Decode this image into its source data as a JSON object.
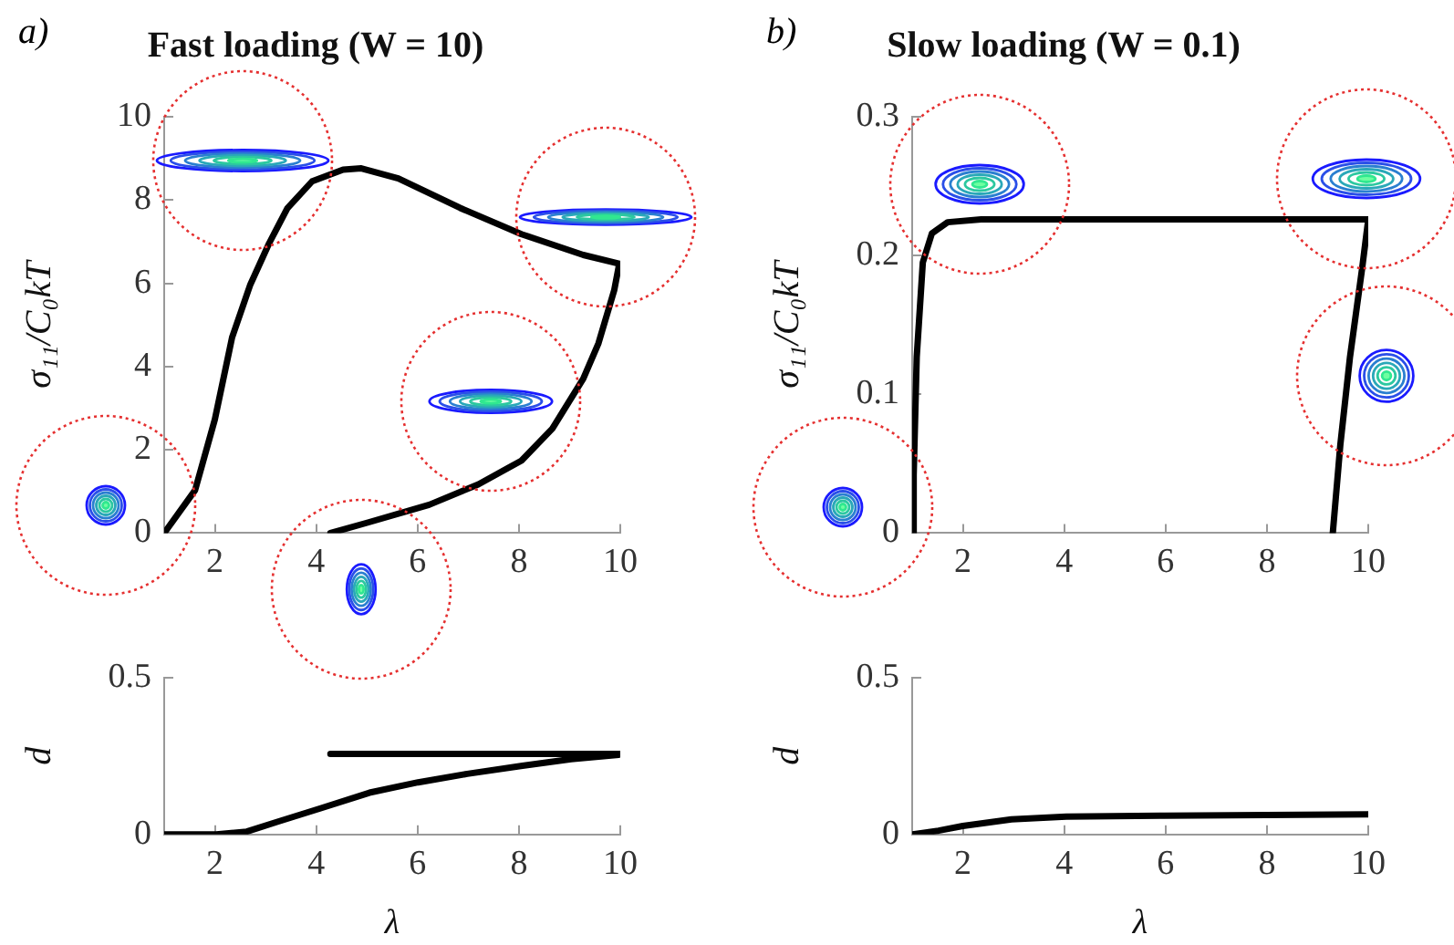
{
  "chart_data": [
    {
      "type": "line",
      "title": "Fast loading (W = 10)",
      "ylabel": "σ₁₁/C₀kT",
      "annotations": [
        "a)"
      ],
      "xlim": [
        1,
        10
      ],
      "xticks": [
        2,
        4,
        6,
        8,
        10
      ],
      "ylim": [
        0,
        10
      ],
      "yticks": [
        0,
        2,
        4,
        6,
        8,
        10
      ],
      "grid": false,
      "legend": false,
      "marker": "none",
      "line_style": "solid",
      "series": [
        {
          "color": "#000000",
          "x": [
            1,
            1.61,
            2.0,
            2.34,
            2.7,
            3.07,
            3.43,
            3.92,
            4.53,
            4.89,
            5.62,
            6.84,
            8.05,
            9.27,
            9.98,
            9.88,
            9.57,
            9.27,
            8.66,
            8.05,
            7.2,
            6.23,
            5.01,
            4.28
          ],
          "values": [
            0,
            1.03,
            2.73,
            4.7,
            5.97,
            6.96,
            7.8,
            8.45,
            8.73,
            8.76,
            8.52,
            7.81,
            7.18,
            6.68,
            6.47,
            5.83,
            4.56,
            3.71,
            2.51,
            1.74,
            1.17,
            0.68,
            0.25,
            0
          ]
        }
      ]
    },
    {
      "type": "line",
      "title": "Slow loading (W = 0.1)",
      "ylabel": "σ₁₁/C₀kT",
      "annotations": [
        "b)"
      ],
      "xlim": [
        1,
        10
      ],
      "xticks": [
        2,
        4,
        6,
        8,
        10
      ],
      "ylim": [
        0,
        0.3
      ],
      "yticks": [
        0,
        0.1,
        0.2,
        0.3
      ],
      "grid": false,
      "legend": false,
      "marker": "none",
      "line_style": "solid",
      "series": [
        {
          "color": "#000000",
          "x": [
            1,
            1.03,
            1.09,
            1.21,
            1.39,
            1.7,
            2.36,
            6.0,
            10,
            9.88,
            9.64,
            9.45,
            9.3
          ],
          "values": [
            0,
            0.042,
            0.127,
            0.195,
            0.216,
            0.224,
            0.226,
            0.226,
            0.226,
            0.191,
            0.127,
            0.064,
            0
          ]
        }
      ]
    },
    {
      "type": "line",
      "xlabel": "λ",
      "ylabel": "d",
      "xlim": [
        1,
        10
      ],
      "xticks": [
        2,
        4,
        6,
        8,
        10
      ],
      "ylim": [
        0,
        0.5
      ],
      "yticks": [
        0,
        0.5
      ],
      "grid": false,
      "legend": false,
      "marker": "none",
      "line_style": "solid",
      "series": [
        {
          "color": "#000000",
          "x": [
            1,
            2.03,
            2.63,
            3.23,
            4.08,
            5.05,
            6.01,
            6.98,
            8.07,
            9.03,
            9.97,
            10,
            4.28
          ],
          "values": [
            0,
            0,
            0.009,
            0.04,
            0.083,
            0.133,
            0.166,
            0.193,
            0.219,
            0.24,
            0.254,
            0.257,
            0.257
          ]
        }
      ]
    },
    {
      "type": "line",
      "xlabel": "λ",
      "ylabel": "d",
      "xlim": [
        1,
        10
      ],
      "xticks": [
        2,
        4,
        6,
        8,
        10
      ],
      "ylim": [
        0,
        0.5
      ],
      "yticks": [
        0,
        0.5
      ],
      "grid": false,
      "legend": false,
      "marker": "none",
      "line_style": "solid",
      "series": [
        {
          "color": "#000000",
          "x": [
            1,
            1.52,
            2.0,
            2.96,
            4.04,
            5.97,
            10
          ],
          "values": [
            0,
            0.012,
            0.027,
            0.048,
            0.057,
            0.06,
            0.064
          ]
        }
      ]
    }
  ]
}
